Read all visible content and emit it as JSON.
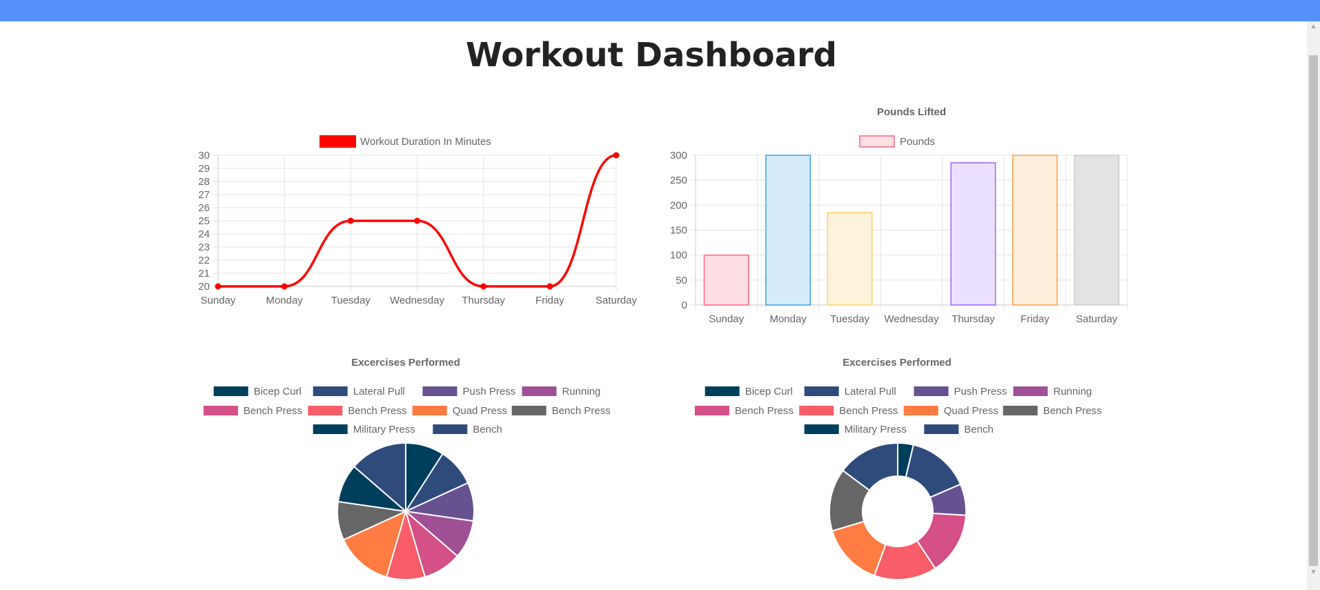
{
  "page": {
    "title": "Workout Dashboard"
  },
  "colors": {
    "topbar": "#5591fb",
    "line": "#ff0000"
  },
  "chart_data": [
    {
      "type": "line",
      "title": "",
      "legend": {
        "position": "top",
        "labels": [
          "Workout Duration In Minutes"
        ]
      },
      "categories": [
        "Sunday",
        "Monday",
        "Tuesday",
        "Wednesday",
        "Thursday",
        "Friday",
        "Saturday"
      ],
      "series": [
        {
          "name": "Workout Duration In Minutes",
          "values": [
            20,
            20,
            25,
            25,
            20,
            20,
            30
          ],
          "color": "#ff0000"
        }
      ],
      "ylim": [
        20,
        30
      ],
      "yticks": [
        "30",
        "29",
        "28",
        "27",
        "26",
        "25",
        "24",
        "23",
        "22",
        "21",
        "20"
      ],
      "grid": true
    },
    {
      "type": "bar",
      "title": "Pounds Lifted",
      "legend": {
        "position": "top",
        "labels": [
          "Pounds"
        ]
      },
      "categories": [
        "Sunday",
        "Monday",
        "Tuesday",
        "Wednesday",
        "Thursday",
        "Friday",
        "Saturday"
      ],
      "series": [
        {
          "name": "Pounds",
          "values": [
            100,
            300,
            185,
            0,
            285,
            300,
            300
          ]
        }
      ],
      "fills": [
        "#ffdfe6",
        "#d6ecfa",
        "#fff3dc",
        "#e3f4f4",
        "#ebe0ff",
        "#ffeedc",
        "#e3e3e3"
      ],
      "borders": [
        "#ff6384",
        "#36a2eb",
        "#ffce56",
        "#4bc0c0",
        "#9966ff",
        "#ff9f40",
        "#c9cbcf"
      ],
      "ylim": [
        0,
        300
      ],
      "yticks": [
        "300",
        "250",
        "200",
        "150",
        "100",
        "50",
        "0"
      ],
      "grid": true
    },
    {
      "type": "pie",
      "title": "Excercises Performed",
      "legend": {
        "position": "top"
      },
      "labels": [
        "Bicep Curl",
        "Lateral Pull",
        "Push Press",
        "Running",
        "Bench Press",
        "Bench Press",
        "Quad Press",
        "Bench Press",
        "Military Press",
        "Bench"
      ],
      "values": [
        2,
        2,
        2,
        2,
        2,
        2,
        3,
        2,
        2,
        3
      ],
      "colors": [
        "#003f5c",
        "#2f4b7c",
        "#665191",
        "#a05195",
        "#d45087",
        "#f95d6a",
        "#ff7c43",
        "#666666",
        "#003f5c",
        "#2f4b7c"
      ]
    },
    {
      "type": "doughnut",
      "title": "Excercises Performed",
      "legend": {
        "position": "top"
      },
      "labels": [
        "Bicep Curl",
        "Lateral Pull",
        "Push Press",
        "Running",
        "Bench Press",
        "Bench Press",
        "Quad Press",
        "Bench Press",
        "Military Press",
        "Bench"
      ],
      "values": [
        1,
        4,
        2,
        0,
        4,
        4,
        4,
        4,
        0,
        4
      ],
      "colors": [
        "#003f5c",
        "#2f4b7c",
        "#665191",
        "#a05195",
        "#d45087",
        "#f95d6a",
        "#ff7c43",
        "#666666",
        "#003f5c",
        "#2f4b7c"
      ]
    }
  ]
}
